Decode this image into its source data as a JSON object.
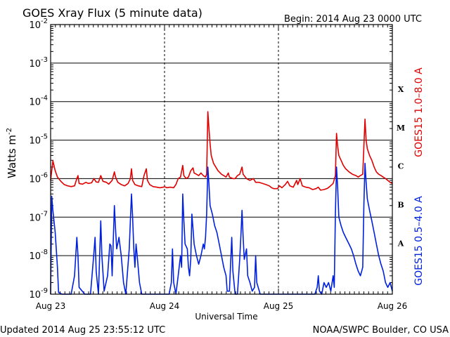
{
  "chart_data": {
    "type": "line",
    "title": "GOES Xray Flux (5 minute data)",
    "begin_label": "Begin:  2014 Aug 23 0000 UTC",
    "xlabel": "Universal Time",
    "ylabel_base": "Watts m",
    "ylabel_exp": "-2",
    "updated_label": "Updated 2014 Aug 25 23:55:12 UTC",
    "credit_label": "NOAA/SWPC Boulder, CO USA",
    "x_ticks": [
      "Aug 23",
      "Aug 24",
      "Aug 25",
      "Aug 26"
    ],
    "x_range_days": [
      0,
      3
    ],
    "y_scale": "log",
    "ylim": [
      1e-09,
      0.01
    ],
    "y_ticks": [
      {
        "base": "10",
        "exp": "-9",
        "value": 1e-09
      },
      {
        "base": "10",
        "exp": "-8",
        "value": 1e-08
      },
      {
        "base": "10",
        "exp": "-7",
        "value": 1e-07
      },
      {
        "base": "10",
        "exp": "-6",
        "value": 1e-06
      },
      {
        "base": "10",
        "exp": "-5",
        "value": 1e-05
      },
      {
        "base": "10",
        "exp": "-4",
        "value": 0.0001
      },
      {
        "base": "10",
        "exp": "-3",
        "value": 0.001
      },
      {
        "base": "10",
        "exp": "-2",
        "value": 0.01
      }
    ],
    "flare_classes": [
      {
        "label": "A",
        "value": 2.2e-08
      },
      {
        "label": "B",
        "value": 2.2e-07
      },
      {
        "label": "C",
        "value": 2.2e-06
      },
      {
        "label": "M",
        "value": 2.2e-05
      },
      {
        "label": "X",
        "value": 0.00022
      }
    ],
    "grid": true,
    "series": [
      {
        "name": "GOES15 1.0–8.0 A",
        "color": "#e00000",
        "points": [
          [
            0.0,
            9e-07
          ],
          [
            0.02,
            2.9e-06
          ],
          [
            0.04,
            1.6e-06
          ],
          [
            0.06,
            1.1e-06
          ],
          [
            0.09,
            8.5e-07
          ],
          [
            0.12,
            7e-07
          ],
          [
            0.15,
            6.5e-07
          ],
          [
            0.18,
            6.2e-07
          ],
          [
            0.21,
            6.5e-07
          ],
          [
            0.23,
            1e-06
          ],
          [
            0.24,
            1.2e-06
          ],
          [
            0.25,
            7.5e-07
          ],
          [
            0.28,
            7.2e-07
          ],
          [
            0.31,
            8e-07
          ],
          [
            0.33,
            7.5e-07
          ],
          [
            0.36,
            7.8e-07
          ],
          [
            0.38,
            1e-06
          ],
          [
            0.4,
            8.2e-07
          ],
          [
            0.42,
            8e-07
          ],
          [
            0.44,
            1.2e-06
          ],
          [
            0.46,
            8.5e-07
          ],
          [
            0.49,
            8e-07
          ],
          [
            0.51,
            7.2e-07
          ],
          [
            0.54,
            9e-07
          ],
          [
            0.56,
            1.5e-06
          ],
          [
            0.57,
            1.1e-06
          ],
          [
            0.59,
            8e-07
          ],
          [
            0.62,
            7e-07
          ],
          [
            0.65,
            6.5e-07
          ],
          [
            0.68,
            7.5e-07
          ],
          [
            0.7,
            1e-06
          ],
          [
            0.71,
            1.8e-06
          ],
          [
            0.72,
            9e-07
          ],
          [
            0.74,
            7e-07
          ],
          [
            0.77,
            6.5e-07
          ],
          [
            0.8,
            6.2e-07
          ],
          [
            0.82,
            1.2e-06
          ],
          [
            0.84,
            1.8e-06
          ],
          [
            0.85,
            9e-07
          ],
          [
            0.87,
            7e-07
          ],
          [
            0.9,
            6.2e-07
          ],
          [
            0.93,
            6e-07
          ],
          [
            0.96,
            5.8e-07
          ],
          [
            0.99,
            6e-07
          ],
          [
            1.0,
            6.2e-07
          ],
          [
            1.02,
            5.8e-07
          ],
          [
            1.05,
            6e-07
          ],
          [
            1.08,
            5.8e-07
          ],
          [
            1.1,
            7e-07
          ],
          [
            1.12,
            1e-06
          ],
          [
            1.14,
            1.1e-06
          ],
          [
            1.16,
            2.2e-06
          ],
          [
            1.17,
            1.2e-06
          ],
          [
            1.19,
            1e-06
          ],
          [
            1.21,
            1.1e-06
          ],
          [
            1.23,
            1.6e-06
          ],
          [
            1.25,
            1.9e-06
          ],
          [
            1.26,
            1.4e-06
          ],
          [
            1.28,
            1.3e-06
          ],
          [
            1.3,
            1.2e-06
          ],
          [
            1.32,
            1.4e-06
          ],
          [
            1.34,
            1.2e-06
          ],
          [
            1.36,
            1.1e-06
          ],
          [
            1.37,
            1.3e-06
          ],
          [
            1.38,
            5.5e-05
          ],
          [
            1.39,
            2e-05
          ],
          [
            1.4,
            8e-06
          ],
          [
            1.41,
            4e-06
          ],
          [
            1.43,
            2.5e-06
          ],
          [
            1.45,
            2e-06
          ],
          [
            1.47,
            1.6e-06
          ],
          [
            1.5,
            1.3e-06
          ],
          [
            1.52,
            1.2e-06
          ],
          [
            1.54,
            1.1e-06
          ],
          [
            1.56,
            1.4e-06
          ],
          [
            1.57,
            1.1e-06
          ],
          [
            1.6,
            1e-06
          ],
          [
            1.62,
            1e-06
          ],
          [
            1.64,
            1.2e-06
          ],
          [
            1.66,
            1.3e-06
          ],
          [
            1.68,
            2e-06
          ],
          [
            1.69,
            1.3e-06
          ],
          [
            1.72,
            1e-06
          ],
          [
            1.75,
            9e-07
          ],
          [
            1.78,
            1e-06
          ],
          [
            1.8,
            8e-07
          ],
          [
            1.83,
            8e-07
          ],
          [
            1.86,
            7.5e-07
          ],
          [
            1.89,
            7e-07
          ],
          [
            1.92,
            6.5e-07
          ],
          [
            1.94,
            5.8e-07
          ],
          [
            1.96,
            5.5e-07
          ],
          [
            1.99,
            5.5e-07
          ],
          [
            2.01,
            6.5e-07
          ],
          [
            2.03,
            5.8e-07
          ],
          [
            2.06,
            7e-07
          ],
          [
            2.08,
            8.5e-07
          ],
          [
            2.1,
            6.5e-07
          ],
          [
            2.13,
            6e-07
          ],
          [
            2.16,
            9e-07
          ],
          [
            2.17,
            7e-07
          ],
          [
            2.19,
            1e-06
          ],
          [
            2.21,
            6.5e-07
          ],
          [
            2.24,
            6e-07
          ],
          [
            2.27,
            5.8e-07
          ],
          [
            2.3,
            5.2e-07
          ],
          [
            2.33,
            5.5e-07
          ],
          [
            2.35,
            6e-07
          ],
          [
            2.37,
            5e-07
          ],
          [
            2.4,
            5.2e-07
          ],
          [
            2.43,
            5.6e-07
          ],
          [
            2.45,
            6.2e-07
          ],
          [
            2.48,
            7.5e-07
          ],
          [
            2.5,
            1.2e-06
          ],
          [
            2.51,
            1.5e-05
          ],
          [
            2.52,
            7e-06
          ],
          [
            2.53,
            4e-06
          ],
          [
            2.55,
            3e-06
          ],
          [
            2.57,
            2.2e-06
          ],
          [
            2.59,
            1.8e-06
          ],
          [
            2.62,
            1.5e-06
          ],
          [
            2.65,
            1.3e-06
          ],
          [
            2.68,
            1.2e-06
          ],
          [
            2.7,
            1.1e-06
          ],
          [
            2.72,
            1.2e-06
          ],
          [
            2.74,
            1.3e-06
          ],
          [
            2.76,
            3.5e-05
          ],
          [
            2.77,
            1e-05
          ],
          [
            2.78,
            6e-06
          ],
          [
            2.8,
            4e-06
          ],
          [
            2.82,
            3e-06
          ],
          [
            2.84,
            2e-06
          ],
          [
            2.86,
            1.5e-06
          ],
          [
            2.88,
            1.3e-06
          ],
          [
            2.9,
            1.2e-06
          ],
          [
            2.92,
            1.1e-06
          ],
          [
            2.94,
            1e-06
          ],
          [
            2.96,
            9e-07
          ],
          [
            2.98,
            8e-07
          ],
          [
            3.0,
            7.5e-07
          ]
        ]
      },
      {
        "name": "GOES15 0.5–4.0 A",
        "color": "#0020e0",
        "points": [
          [
            0.0,
            1e-09
          ],
          [
            0.01,
            3.5e-07
          ],
          [
            0.02,
            1.5e-07
          ],
          [
            0.04,
            4e-08
          ],
          [
            0.06,
            5e-09
          ],
          [
            0.07,
            1.1e-09
          ],
          [
            0.1,
            1e-09
          ],
          [
            0.14,
            1e-09
          ],
          [
            0.18,
            1e-09
          ],
          [
            0.21,
            3e-09
          ],
          [
            0.23,
            3e-08
          ],
          [
            0.24,
            1e-08
          ],
          [
            0.25,
            1.5e-09
          ],
          [
            0.3,
            1e-09
          ],
          [
            0.35,
            1e-09
          ],
          [
            0.38,
            1.2e-08
          ],
          [
            0.39,
            3e-08
          ],
          [
            0.4,
            4e-09
          ],
          [
            0.42,
            1e-09
          ],
          [
            0.44,
            8e-08
          ],
          [
            0.45,
            1e-08
          ],
          [
            0.47,
            1.2e-09
          ],
          [
            0.5,
            3e-09
          ],
          [
            0.52,
            2e-08
          ],
          [
            0.53,
            1.8e-08
          ],
          [
            0.54,
            3e-09
          ],
          [
            0.56,
            2e-07
          ],
          [
            0.57,
            5e-08
          ],
          [
            0.58,
            1.5e-08
          ],
          [
            0.6,
            3e-08
          ],
          [
            0.62,
            1e-08
          ],
          [
            0.64,
            2e-09
          ],
          [
            0.66,
            1e-09
          ],
          [
            0.69,
            1.5e-08
          ],
          [
            0.7,
            8e-08
          ],
          [
            0.71,
            4e-07
          ],
          [
            0.72,
            1e-07
          ],
          [
            0.73,
            1.5e-08
          ],
          [
            0.74,
            5e-09
          ],
          [
            0.75,
            2e-08
          ],
          [
            0.76,
            1e-08
          ],
          [
            0.78,
            2e-09
          ],
          [
            0.8,
            1e-09
          ],
          [
            0.84,
            1e-09
          ],
          [
            0.88,
            1e-09
          ],
          [
            0.92,
            1e-09
          ],
          [
            0.96,
            1e-09
          ],
          [
            1.0,
            1e-09
          ],
          [
            1.04,
            1e-09
          ],
          [
            1.06,
            2e-09
          ],
          [
            1.07,
            1.5e-08
          ],
          [
            1.08,
            2e-09
          ],
          [
            1.1,
            1e-09
          ],
          [
            1.12,
            3e-09
          ],
          [
            1.14,
            1e-08
          ],
          [
            1.15,
            5e-09
          ],
          [
            1.16,
            4e-07
          ],
          [
            1.17,
            8e-08
          ],
          [
            1.18,
            2e-08
          ],
          [
            1.2,
            1.5e-08
          ],
          [
            1.21,
            5e-09
          ],
          [
            1.22,
            3e-09
          ],
          [
            1.23,
            8e-09
          ],
          [
            1.24,
            1.2e-07
          ],
          [
            1.25,
            5e-08
          ],
          [
            1.26,
            2e-08
          ],
          [
            1.28,
            1e-08
          ],
          [
            1.3,
            6e-09
          ],
          [
            1.32,
            1e-08
          ],
          [
            1.34,
            2e-08
          ],
          [
            1.35,
            1.5e-08
          ],
          [
            1.36,
            3e-08
          ],
          [
            1.37,
            1.2e-07
          ],
          [
            1.38,
            2e-06
          ],
          [
            1.39,
            7e-07
          ],
          [
            1.4,
            2e-07
          ],
          [
            1.42,
            1.2e-07
          ],
          [
            1.44,
            6e-08
          ],
          [
            1.46,
            4e-08
          ],
          [
            1.48,
            2e-08
          ],
          [
            1.5,
            1e-08
          ],
          [
            1.52,
            5e-09
          ],
          [
            1.54,
            3e-09
          ],
          [
            1.55,
            1.2e-09
          ],
          [
            1.57,
            1.2e-09
          ],
          [
            1.59,
            3e-08
          ],
          [
            1.6,
            4e-09
          ],
          [
            1.62,
            1e-09
          ],
          [
            1.64,
            1e-09
          ],
          [
            1.66,
            8e-09
          ],
          [
            1.67,
            3e-08
          ],
          [
            1.68,
            1.5e-07
          ],
          [
            1.69,
            3e-08
          ],
          [
            1.7,
            8e-09
          ],
          [
            1.72,
            1.5e-08
          ],
          [
            1.73,
            3e-09
          ],
          [
            1.75,
            2e-09
          ],
          [
            1.77,
            1.2e-09
          ],
          [
            1.79,
            1.5e-09
          ],
          [
            1.8,
            1e-08
          ],
          [
            1.81,
            2e-09
          ],
          [
            1.84,
            1e-09
          ],
          [
            1.88,
            1e-09
          ],
          [
            1.92,
            1e-09
          ],
          [
            1.96,
            1e-09
          ],
          [
            2.0,
            1e-09
          ],
          [
            2.04,
            1e-09
          ],
          [
            2.08,
            1e-09
          ],
          [
            2.12,
            1e-09
          ],
          [
            2.16,
            1e-09
          ],
          [
            2.2,
            1e-09
          ],
          [
            2.24,
            1e-09
          ],
          [
            2.28,
            1e-09
          ],
          [
            2.32,
            1e-09
          ],
          [
            2.34,
            1.5e-09
          ],
          [
            2.35,
            3e-09
          ],
          [
            2.36,
            1.2e-09
          ],
          [
            2.38,
            1e-09
          ],
          [
            2.4,
            2e-09
          ],
          [
            2.42,
            1.5e-09
          ],
          [
            2.44,
            2e-09
          ],
          [
            2.46,
            1.2e-09
          ],
          [
            2.48,
            3e-09
          ],
          [
            2.49,
            1.5e-09
          ],
          [
            2.5,
            1.2e-07
          ],
          [
            2.51,
            2e-06
          ],
          [
            2.52,
            6e-07
          ],
          [
            2.53,
            1e-07
          ],
          [
            2.55,
            6e-08
          ],
          [
            2.57,
            4e-08
          ],
          [
            2.59,
            3e-08
          ],
          [
            2.62,
            2e-08
          ],
          [
            2.64,
            1.5e-08
          ],
          [
            2.66,
            1e-08
          ],
          [
            2.68,
            6e-09
          ],
          [
            2.7,
            4e-09
          ],
          [
            2.72,
            3e-09
          ],
          [
            2.74,
            5e-09
          ],
          [
            2.75,
            2e-07
          ],
          [
            2.76,
            2.5e-06
          ],
          [
            2.77,
            8e-07
          ],
          [
            2.78,
            3e-07
          ],
          [
            2.8,
            1.5e-07
          ],
          [
            2.82,
            8e-08
          ],
          [
            2.84,
            4e-08
          ],
          [
            2.86,
            2e-08
          ],
          [
            2.88,
            1e-08
          ],
          [
            2.9,
            6e-09
          ],
          [
            2.92,
            4e-09
          ],
          [
            2.94,
            2e-09
          ],
          [
            2.96,
            1.5e-09
          ],
          [
            2.98,
            2e-09
          ],
          [
            3.0,
            1.2e-09
          ]
        ]
      }
    ]
  }
}
